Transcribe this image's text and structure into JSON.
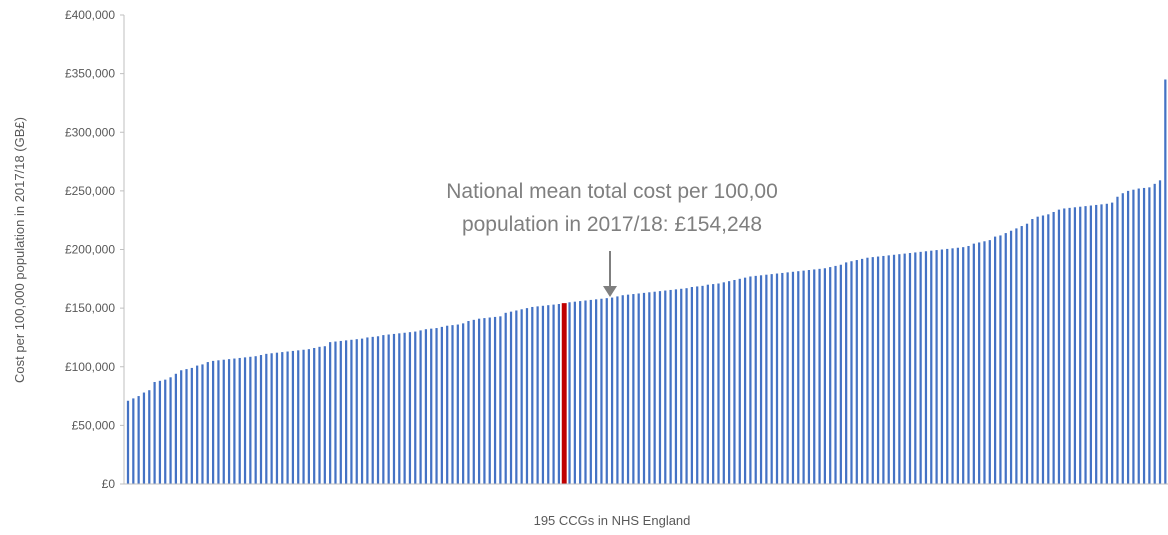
{
  "chart_data": {
    "type": "bar",
    "xlabel": "195 CCGs in NHS England",
    "ylabel": "Cost per 100,000 population in 2017/18 (GB£)",
    "ylim": [
      0,
      400000
    ],
    "yticks": [
      0,
      50000,
      100000,
      150000,
      200000,
      250000,
      300000,
      350000,
      400000
    ],
    "ytick_labels": [
      "£0",
      "£50,000",
      "£100,000",
      "£150,000",
      "£200,000",
      "£250,000",
      "£300,000",
      "£350,000",
      "£400,000"
    ],
    "grid": false,
    "legend": "none",
    "bar_color": "#4472C4",
    "highlight_color": "#C00000",
    "highlight_index": 82,
    "annotation": {
      "lines": [
        "National mean total cost per 100,00",
        "population in 2017/18: £154,248"
      ],
      "value": 154248
    },
    "values": [
      71000,
      73000,
      75000,
      78000,
      80000,
      87000,
      88000,
      89000,
      91000,
      94000,
      97000,
      98000,
      99000,
      101000,
      102000,
      104000,
      105000,
      105500,
      106000,
      106500,
      107000,
      107500,
      108000,
      108500,
      109000,
      110000,
      111000,
      111500,
      112000,
      112500,
      113000,
      113500,
      114000,
      114500,
      115000,
      116000,
      117000,
      117500,
      121000,
      121500,
      122000,
      122500,
      123000,
      123500,
      124000,
      125000,
      125500,
      126000,
      127000,
      127500,
      128000,
      128500,
      129000,
      129500,
      130000,
      131000,
      132000,
      132500,
      133000,
      134000,
      135000,
      135500,
      136000,
      137000,
      139000,
      140000,
      141000,
      141500,
      142000,
      142500,
      143000,
      146000,
      147000,
      148000,
      149000,
      150000,
      151000,
      151500,
      152000,
      152500,
      153000,
      153500,
      154248,
      155000,
      155500,
      156000,
      156500,
      157000,
      157500,
      158000,
      158500,
      159000,
      160000,
      161000,
      161500,
      162000,
      162500,
      163000,
      163500,
      164000,
      164500,
      165000,
      165500,
      166000,
      166500,
      167000,
      168000,
      168500,
      169000,
      170000,
      170500,
      171000,
      172000,
      173000,
      174000,
      175000,
      176000,
      177000,
      177500,
      178000,
      178500,
      179000,
      179500,
      180000,
      180500,
      181000,
      181500,
      182000,
      182500,
      183000,
      183500,
      184000,
      185000,
      186000,
      187000,
      189000,
      190000,
      191000,
      192000,
      193000,
      193500,
      194000,
      194500,
      195000,
      195500,
      196000,
      196500,
      197000,
      197500,
      198000,
      198500,
      199000,
      199500,
      200000,
      200500,
      201000,
      201500,
      202000,
      203000,
      205000,
      206000,
      207000,
      208000,
      211000,
      212000,
      214000,
      216000,
      218000,
      220000,
      222000,
      226000,
      228000,
      229000,
      230000,
      232000,
      234000,
      235000,
      235500,
      236000,
      236500,
      237000,
      237500,
      238000,
      238500,
      239000,
      240000,
      245000,
      248000,
      250000,
      251000,
      252000,
      252500,
      253000,
      256000,
      259000,
      345000
    ]
  }
}
